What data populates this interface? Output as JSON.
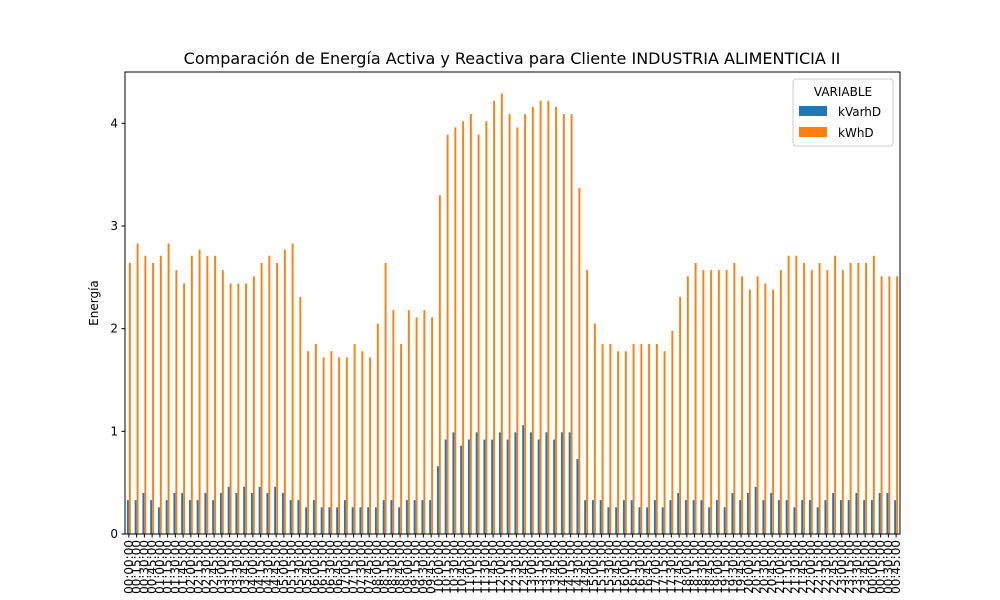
{
  "chart_data": {
    "type": "bar",
    "title": "Comparación de Energía Activa y Reactiva para Cliente INDUSTRIA ALIMENTICIA II",
    "xlabel": "",
    "ylabel": "Energía",
    "ylim": [
      0,
      4.5
    ],
    "yticks": [
      0,
      1,
      2,
      3,
      4
    ],
    "legend": {
      "title": "VARIABLE",
      "position": "top-right"
    },
    "categories": [
      "00:00:00",
      "00:15:00",
      "00:30:00",
      "00:45:00",
      "01:00:00",
      "01:15:00",
      "01:30:00",
      "01:45:00",
      "02:00:00",
      "02:15:00",
      "02:30:00",
      "02:45:00",
      "03:00:00",
      "03:15:00",
      "03:30:00",
      "03:45:00",
      "04:00:00",
      "04:15:00",
      "04:30:00",
      "04:45:00",
      "05:00:00",
      "05:15:00",
      "05:30:00",
      "05:45:00",
      "06:00:00",
      "06:15:00",
      "06:30:00",
      "06:45:00",
      "07:00:00",
      "07:15:00",
      "07:30:00",
      "07:45:00",
      "08:00:00",
      "08:15:00",
      "08:30:00",
      "08:45:00",
      "09:00:00",
      "09:15:00",
      "09:30:00",
      "09:45:00",
      "10:00:00",
      "10:15:00",
      "10:30:00",
      "10:45:00",
      "11:00:00",
      "11:15:00",
      "11:30:00",
      "11:45:00",
      "12:00:00",
      "12:15:00",
      "12:30:00",
      "12:45:00",
      "13:00:00",
      "13:15:00",
      "13:30:00",
      "13:45:00",
      "14:00:00",
      "14:15:00",
      "14:30:00",
      "14:45:00",
      "15:00:00",
      "15:15:00",
      "15:30:00",
      "15:45:00",
      "16:00:00",
      "16:15:00",
      "16:30:00",
      "16:45:00",
      "17:00:00",
      "17:15:00",
      "17:30:00",
      "17:45:00",
      "18:00:00",
      "18:15:00",
      "18:30:00",
      "18:45:00",
      "19:00:00",
      "19:15:00",
      "19:30:00",
      "19:45:00",
      "20:00:00",
      "20:15:00",
      "20:30:00",
      "20:45:00",
      "21:00:00",
      "21:15:00",
      "21:30:00",
      "21:45:00",
      "22:00:00",
      "22:15:00",
      "22:30:00",
      "22:45:00",
      "23:00:00",
      "23:15:00",
      "23:30:00",
      "23:45:00",
      "00:00:00",
      "00:15:00",
      "00:30:00",
      "00:45:00"
    ],
    "series": [
      {
        "name": "kVarhD",
        "color": "#1f77b4",
        "values": [
          0.33,
          0.33,
          0.4,
          0.33,
          0.26,
          0.33,
          0.4,
          0.4,
          0.33,
          0.33,
          0.4,
          0.33,
          0.4,
          0.46,
          0.4,
          0.46,
          0.4,
          0.46,
          0.4,
          0.46,
          0.4,
          0.33,
          0.33,
          0.26,
          0.33,
          0.26,
          0.26,
          0.26,
          0.33,
          0.26,
          0.26,
          0.26,
          0.26,
          0.33,
          0.33,
          0.26,
          0.33,
          0.33,
          0.33,
          0.33,
          0.66,
          0.92,
          0.99,
          0.86,
          0.92,
          0.99,
          0.92,
          0.92,
          0.99,
          0.92,
          0.99,
          1.06,
          0.99,
          0.92,
          0.99,
          0.92,
          0.99,
          0.99,
          0.73,
          0.33,
          0.33,
          0.33,
          0.26,
          0.26,
          0.33,
          0.33,
          0.26,
          0.26,
          0.33,
          0.26,
          0.33,
          0.4,
          0.33,
          0.33,
          0.33,
          0.26,
          0.33,
          0.26,
          0.4,
          0.33,
          0.4,
          0.46,
          0.33,
          0.4,
          0.33,
          0.33,
          0.26,
          0.33,
          0.33,
          0.26,
          0.33,
          0.4,
          0.33,
          0.33,
          0.4,
          0.33,
          0.33,
          0.4,
          0.4,
          0.33
        ]
      },
      {
        "name": "kWhD",
        "color": "#ff7f0e",
        "values": [
          2.64,
          2.83,
          2.71,
          2.64,
          2.71,
          2.83,
          2.57,
          2.44,
          2.71,
          2.77,
          2.71,
          2.71,
          2.57,
          2.44,
          2.44,
          2.44,
          2.51,
          2.64,
          2.71,
          2.64,
          2.77,
          2.83,
          2.31,
          1.78,
          1.85,
          1.72,
          1.78,
          1.72,
          1.72,
          1.85,
          1.78,
          1.72,
          2.05,
          2.64,
          2.18,
          1.85,
          2.18,
          2.11,
          2.18,
          2.11,
          3.3,
          3.89,
          3.96,
          4.02,
          4.09,
          3.89,
          4.02,
          4.22,
          4.29,
          4.09,
          3.96,
          4.09,
          4.16,
          4.22,
          4.22,
          4.16,
          4.09,
          4.09,
          3.37,
          2.57,
          2.05,
          1.85,
          1.85,
          1.78,
          1.78,
          1.85,
          1.85,
          1.85,
          1.85,
          1.78,
          1.98,
          2.31,
          2.51,
          2.64,
          2.57,
          2.57,
          2.57,
          2.57,
          2.64,
          2.51,
          2.38,
          2.51,
          2.44,
          2.38,
          2.57,
          2.71,
          2.71,
          2.64,
          2.57,
          2.64,
          2.57,
          2.71,
          2.57,
          2.64,
          2.64,
          2.64,
          2.71,
          2.51,
          2.51,
          2.51
        ]
      }
    ]
  }
}
